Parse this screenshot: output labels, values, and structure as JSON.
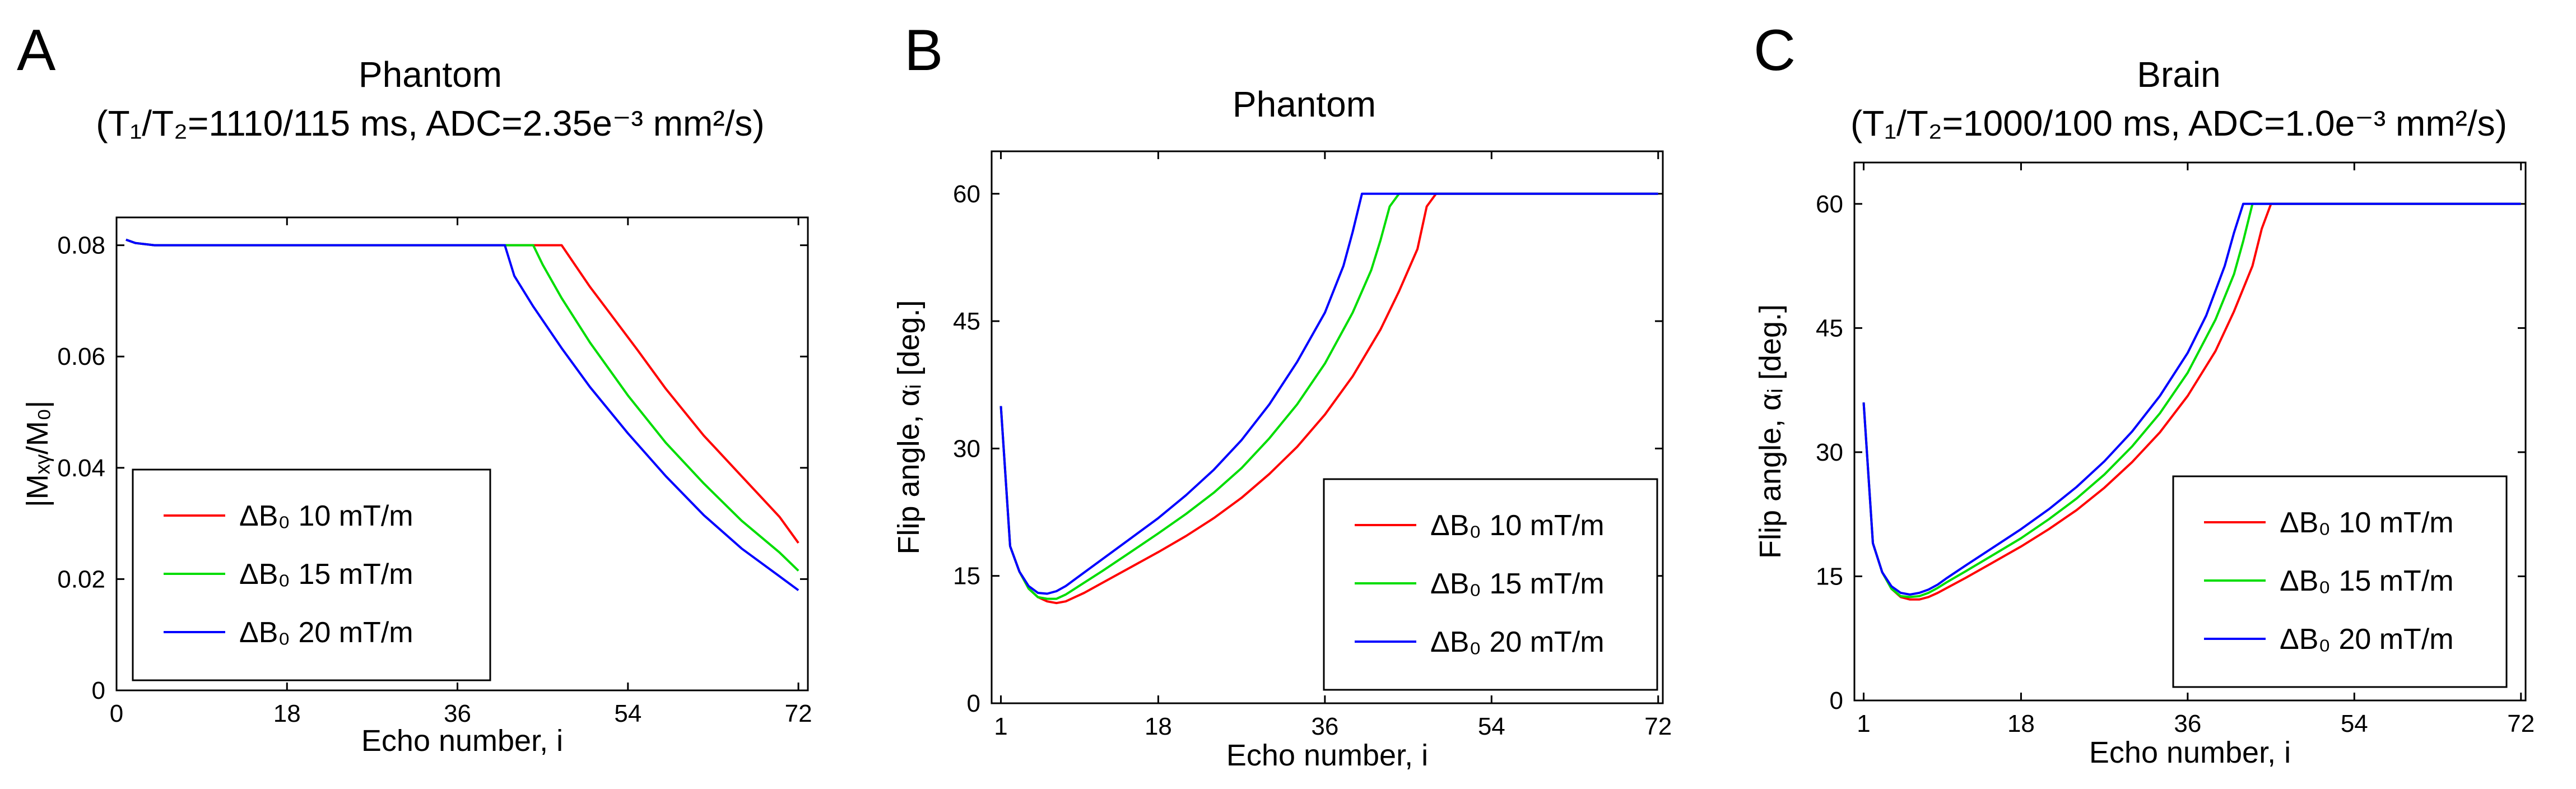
{
  "chart_data": [
    {
      "panel": "A",
      "type": "line",
      "title": "Phantom",
      "subtitle": "(T₁/T₂=1110/115 ms, ADC=2.35e⁻³ mm²/s)",
      "xlabel": "Echo number, i",
      "ylabel": "|Mₓᵧ/M₀|",
      "xlim": [
        0,
        73
      ],
      "ylim": [
        0,
        0.085
      ],
      "xticks": [
        "0",
        "18",
        "36",
        "54",
        "72"
      ],
      "yticks": [
        "0",
        "0.02",
        "0.04",
        "0.06",
        "0.08"
      ],
      "legend_position": "lower-left",
      "series": [
        {
          "name": "ΔB₀ 10 mT/m",
          "color": "#ff0000",
          "x": [
            1,
            2,
            4,
            6,
            10,
            20,
            30,
            40,
            47,
            48,
            50,
            52,
            55,
            58,
            62,
            66,
            70,
            72
          ],
          "y": [
            0.081,
            0.0804,
            0.08,
            0.08,
            0.08,
            0.08,
            0.08,
            0.08,
            0.08,
            0.0775,
            0.0725,
            0.068,
            0.0612,
            0.0542,
            0.0458,
            0.0385,
            0.0312,
            0.0265
          ]
        },
        {
          "name": "ΔB₀ 15 mT/m",
          "color": "#00dd00",
          "x": [
            1,
            2,
            4,
            6,
            10,
            20,
            30,
            40,
            44,
            45,
            47,
            50,
            54,
            58,
            62,
            66,
            70,
            72
          ],
          "y": [
            0.081,
            0.0804,
            0.08,
            0.08,
            0.08,
            0.08,
            0.08,
            0.08,
            0.08,
            0.0765,
            0.0705,
            0.0625,
            0.053,
            0.0445,
            0.0372,
            0.0305,
            0.0248,
            0.0215
          ]
        },
        {
          "name": "ΔB₀ 20 mT/m",
          "color": "#0000ff",
          "x": [
            1,
            2,
            4,
            6,
            10,
            20,
            30,
            40,
            41,
            42,
            44,
            47,
            50,
            54,
            58,
            62,
            66,
            70,
            72
          ],
          "y": [
            0.081,
            0.0804,
            0.08,
            0.08,
            0.08,
            0.08,
            0.08,
            0.08,
            0.08,
            0.0745,
            0.069,
            0.0615,
            0.0545,
            0.0462,
            0.0385,
            0.0315,
            0.0255,
            0.0205,
            0.018
          ]
        }
      ]
    },
    {
      "panel": "B",
      "type": "line",
      "title": "Phantom",
      "subtitle": "",
      "xlabel": "Echo number, i",
      "ylabel": "Flip angle, αᵢ [deg.]",
      "xlim": [
        0,
        72.5
      ],
      "ylim": [
        0,
        65
      ],
      "xticks": [
        "1",
        "18",
        "36",
        "54",
        "72"
      ],
      "yticks": [
        "0",
        "15",
        "30",
        "45",
        "60"
      ],
      "legend_position": "lower-right",
      "series": [
        {
          "name": "ΔB₀ 10 mT/m",
          "color": "#ff0000",
          "x": [
            1,
            2,
            3,
            4,
            5,
            6,
            7,
            8,
            9,
            10,
            12,
            15,
            18,
            21,
            24,
            27,
            30,
            33,
            36,
            39,
            42,
            44,
            46,
            47,
            48,
            50,
            55,
            60,
            65,
            72
          ],
          "y": [
            35,
            18.5,
            15.5,
            13.5,
            12.5,
            12.0,
            11.8,
            12.0,
            12.5,
            13.0,
            14.2,
            16.0,
            17.8,
            19.7,
            21.8,
            24.2,
            27.0,
            30.2,
            34.0,
            38.5,
            44.0,
            48.5,
            53.5,
            58.5,
            60,
            60,
            60,
            60,
            60,
            60
          ]
        },
        {
          "name": "ΔB₀ 15 mT/m",
          "color": "#00dd00",
          "x": [
            1,
            2,
            3,
            4,
            5,
            6,
            7,
            8,
            9,
            10,
            12,
            15,
            18,
            21,
            24,
            27,
            30,
            33,
            36,
            39,
            41,
            42,
            43,
            44,
            46,
            50,
            55,
            60,
            65,
            72
          ],
          "y": [
            35,
            18.5,
            15.5,
            13.5,
            12.5,
            12.3,
            12.3,
            12.8,
            13.5,
            14.2,
            15.6,
            17.8,
            20.0,
            22.3,
            24.8,
            27.7,
            31.2,
            35.2,
            40.0,
            46.0,
            51.0,
            54.5,
            58.5,
            60,
            60,
            60,
            60,
            60,
            60,
            60
          ]
        },
        {
          "name": "ΔB₀ 20 mT/m",
          "color": "#0000ff",
          "x": [
            1,
            2,
            3,
            4,
            5,
            6,
            7,
            8,
            9,
            10,
            12,
            15,
            18,
            21,
            24,
            27,
            30,
            33,
            36,
            38,
            39,
            40,
            42,
            45,
            50,
            55,
            60,
            65,
            72
          ],
          "y": [
            35,
            18.5,
            15.5,
            13.8,
            13.0,
            12.9,
            13.2,
            13.8,
            14.6,
            15.4,
            17.0,
            19.4,
            21.8,
            24.5,
            27.5,
            31.0,
            35.2,
            40.2,
            46.0,
            51.5,
            55.5,
            60,
            60,
            60,
            60,
            60,
            60,
            60,
            60
          ]
        }
      ]
    },
    {
      "panel": "C",
      "type": "line",
      "title": "Brain",
      "subtitle": "(T₁/T₂=1000/100 ms, ADC=1.0e⁻³ mm²/s)",
      "xlabel": "Echo number, i",
      "ylabel": "Flip angle, αᵢ [deg.]",
      "xlim": [
        0,
        72.5
      ],
      "ylim": [
        0,
        65
      ],
      "xticks": [
        "1",
        "18",
        "36",
        "54",
        "72"
      ],
      "yticks": [
        "0",
        "15",
        "30",
        "45",
        "60"
      ],
      "legend_position": "lower-right",
      "series": [
        {
          "name": "ΔB₀ 10 mT/m",
          "color": "#ff0000",
          "x": [
            1,
            2,
            3,
            4,
            5,
            6,
            7,
            8,
            9,
            10,
            12,
            15,
            18,
            21,
            24,
            27,
            30,
            33,
            36,
            39,
            41,
            43,
            44,
            45,
            48,
            55,
            60,
            65,
            72
          ],
          "y": [
            36,
            19,
            15.5,
            13.5,
            12.5,
            12.2,
            12.2,
            12.5,
            13.0,
            13.6,
            14.8,
            16.7,
            18.6,
            20.7,
            23.0,
            25.7,
            28.8,
            32.4,
            36.8,
            42.2,
            47.0,
            52.5,
            57.0,
            60,
            60,
            60,
            60,
            60,
            60
          ]
        },
        {
          "name": "ΔB₀ 15 mT/m",
          "color": "#00dd00",
          "x": [
            1,
            2,
            3,
            4,
            5,
            6,
            7,
            8,
            9,
            10,
            12,
            15,
            18,
            21,
            24,
            27,
            30,
            33,
            36,
            39,
            41,
            42,
            43,
            45,
            50,
            55,
            60,
            65,
            72
          ],
          "y": [
            36,
            19,
            15.5,
            13.5,
            12.6,
            12.5,
            12.6,
            13.0,
            13.6,
            14.3,
            15.6,
            17.6,
            19.6,
            21.9,
            24.4,
            27.3,
            30.7,
            34.7,
            39.6,
            46.0,
            51.5,
            55.5,
            60,
            60,
            60,
            60,
            60,
            60,
            60
          ]
        },
        {
          "name": "ΔB₀ 20 mT/m",
          "color": "#0000ff",
          "x": [
            1,
            2,
            3,
            4,
            5,
            6,
            7,
            8,
            9,
            10,
            12,
            15,
            18,
            21,
            24,
            27,
            30,
            33,
            36,
            38,
            40,
            41,
            42,
            45,
            50,
            55,
            60,
            65,
            72
          ],
          "y": [
            36,
            19,
            15.5,
            13.8,
            13.0,
            12.8,
            13.0,
            13.4,
            14.0,
            14.8,
            16.3,
            18.5,
            20.7,
            23.1,
            25.8,
            28.9,
            32.5,
            36.8,
            42.0,
            46.5,
            52.5,
            56.5,
            60,
            60,
            60,
            60,
            60,
            60,
            60
          ]
        }
      ]
    }
  ]
}
